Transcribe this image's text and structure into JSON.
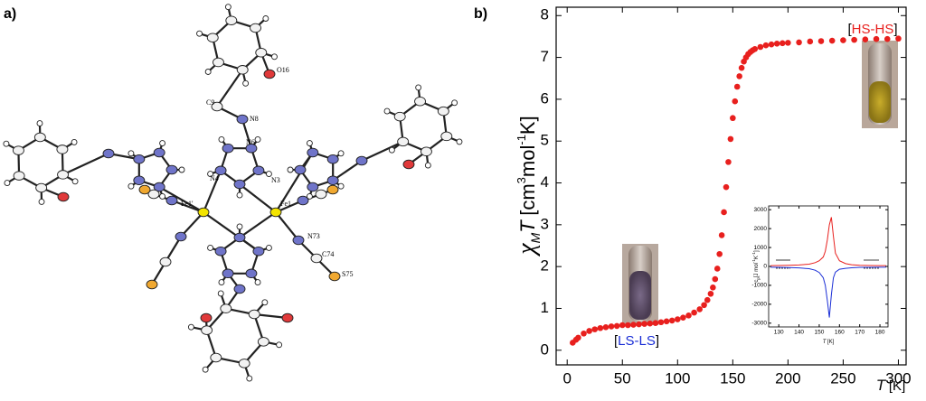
{
  "figure": {
    "panel_a": {
      "label": "a)",
      "atom_labels": [
        "O16",
        "C9",
        "N8",
        "N6",
        "N4",
        "N3",
        "Fe1'",
        "Fe1",
        "N73",
        "C74",
        "S75"
      ]
    },
    "panel_b": {
      "label": "b)",
      "annotations": [
        {
          "parts": [
            "[",
            "HS-HS",
            "]"
          ]
        },
        {
          "parts": [
            "[",
            "LS-LS",
            "]"
          ]
        }
      ]
    }
  },
  "chart_data": [
    {
      "type": "scatter",
      "ylabel": [
        "χ",
        "M",
        "T",
        "[cm",
        "3",
        "mol",
        "-1",
        "K]"
      ],
      "xlabel": [
        "T",
        "[K]"
      ],
      "x": [
        5,
        8,
        10,
        15,
        20,
        25,
        30,
        35,
        40,
        45,
        50,
        55,
        60,
        65,
        70,
        75,
        80,
        85,
        90,
        95,
        100,
        105,
        110,
        115,
        120,
        124,
        127,
        130,
        132,
        134,
        136,
        138,
        140,
        142,
        144,
        146,
        148,
        150,
        152,
        154,
        156,
        158,
        160,
        162,
        164,
        166,
        168,
        170,
        175,
        180,
        185,
        190,
        195,
        200,
        210,
        220,
        230,
        240,
        250,
        260,
        270,
        280,
        290,
        300
      ],
      "values": [
        0.18,
        0.25,
        0.3,
        0.4,
        0.46,
        0.5,
        0.53,
        0.55,
        0.57,
        0.58,
        0.6,
        0.6,
        0.61,
        0.62,
        0.63,
        0.64,
        0.65,
        0.67,
        0.69,
        0.71,
        0.74,
        0.78,
        0.83,
        0.9,
        0.98,
        1.08,
        1.2,
        1.35,
        1.5,
        1.7,
        1.95,
        2.3,
        2.75,
        3.3,
        3.9,
        4.5,
        5.05,
        5.55,
        5.95,
        6.3,
        6.55,
        6.75,
        6.9,
        7.0,
        7.08,
        7.13,
        7.17,
        7.2,
        7.25,
        7.29,
        7.31,
        7.33,
        7.34,
        7.35,
        7.36,
        7.38,
        7.39,
        7.4,
        7.41,
        7.42,
        7.43,
        7.44,
        7.44,
        7.45
      ],
      "color": "#e8201e",
      "xlim": [
        -10,
        307
      ],
      "xticks": [
        0,
        50,
        100,
        150,
        200,
        250,
        300
      ],
      "ylim": [
        -0.35,
        8.2
      ],
      "yticks": [
        0,
        1,
        2,
        3,
        4,
        5,
        6,
        7,
        8
      ]
    },
    {
      "type": "line",
      "ylabel": [
        "c",
        "p",
        "[J mol",
        "-1",
        "K",
        "-1",
        "]"
      ],
      "xlabel": [
        "T",
        "[K]"
      ],
      "x": [
        126,
        130,
        135,
        140,
        145,
        148,
        150,
        152,
        153,
        154,
        155,
        156,
        157,
        158,
        160,
        163,
        166,
        170,
        175,
        180,
        183
      ],
      "series": [
        {
          "color": "#e8201e",
          "values": [
            40,
            50,
            60,
            80,
            120,
            200,
            300,
            500,
            800,
            1400,
            2200,
            2600,
            1600,
            700,
            300,
            150,
            90,
            60,
            50,
            40,
            40
          ]
        },
        {
          "color": "#1b2fd6",
          "values": [
            -40,
            -50,
            -60,
            -80,
            -120,
            -200,
            -320,
            -600,
            -1000,
            -1800,
            -2700,
            -1500,
            -600,
            -300,
            -150,
            -100,
            -70,
            -50,
            -45,
            -40,
            -40
          ]
        }
      ],
      "xlim": [
        125,
        184
      ],
      "xticks": [
        130,
        140,
        150,
        160,
        170,
        180
      ],
      "ylim": [
        -3200,
        3200
      ],
      "yticks": [
        -3000,
        -2000,
        -1000,
        0,
        1000,
        2000,
        3000
      ]
    }
  ]
}
